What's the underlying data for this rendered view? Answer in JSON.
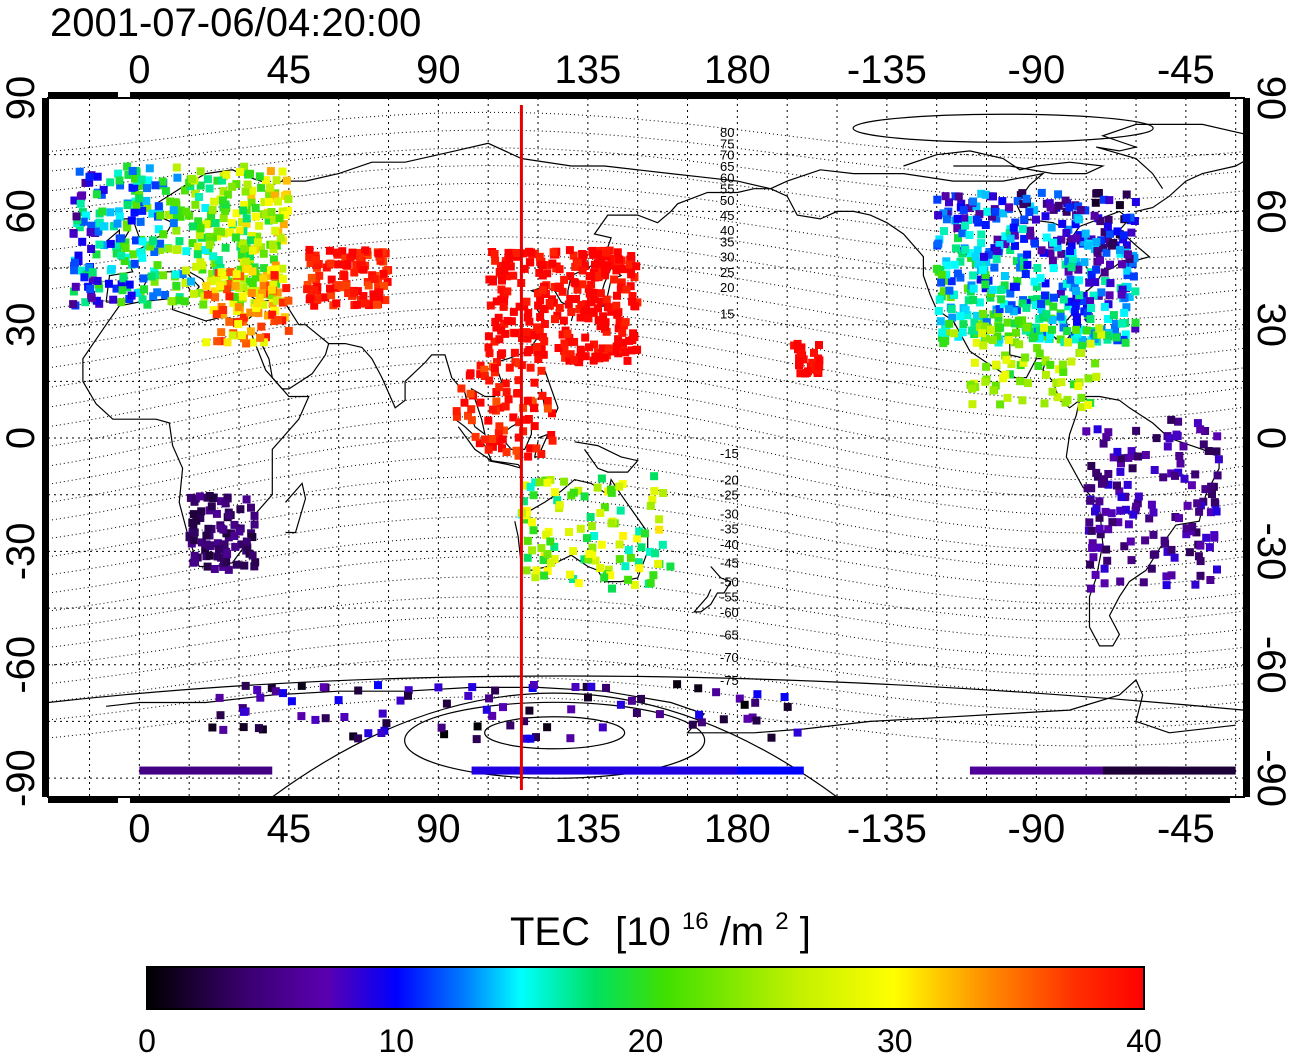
{
  "timestamp": "2001-07-06/04:20:00",
  "longitude_ticks": [
    "0",
    "45",
    "90",
    "135",
    "180",
    "-135",
    "-90",
    "-45"
  ],
  "latitude_ticks": [
    "90",
    "60",
    "30",
    "0",
    "-30",
    "-60",
    "-90"
  ],
  "contour_labels": [
    "80",
    "75",
    "70",
    "65",
    "60",
    "55",
    "50",
    "45",
    "40",
    "35",
    "30",
    "25",
    "20",
    "15",
    "-15",
    "-20",
    "-25",
    "-30",
    "-35",
    "-40",
    "-45",
    "-50",
    "-55",
    "-60",
    "-65",
    "-70",
    "-75"
  ],
  "marker_longitude_deg": 115,
  "colorbar": {
    "title": "TEC",
    "unit_base": "[10",
    "unit_exp": "16",
    "unit_mid": "/m",
    "unit_exp2": "2",
    "unit_end": "]",
    "tick_labels": [
      "0",
      "10",
      "20",
      "30",
      "40"
    ],
    "range": [
      0,
      40
    ]
  },
  "colors": {
    "marker_line": "#e60000",
    "gradient_stops": [
      "#000000",
      "#3a0070",
      "#5a00b0",
      "#0000ff",
      "#0080ff",
      "#00ffff",
      "#00e060",
      "#40e000",
      "#c0f000",
      "#ffff00",
      "#ff9000",
      "#ff3000",
      "#ff0000"
    ]
  },
  "tec_regions": [
    {
      "name": "europe",
      "tec": 19
    },
    {
      "name": "middle-east",
      "tec": 33
    },
    {
      "name": "central-asia",
      "tec": 39
    },
    {
      "name": "japan-china",
      "tec": 40
    },
    {
      "name": "southeast-asia",
      "tec": 39
    },
    {
      "name": "australia",
      "tec": 23
    },
    {
      "name": "north-america",
      "tec": 16
    },
    {
      "name": "mexico",
      "tec": 24
    },
    {
      "name": "south-america",
      "tec": 6
    },
    {
      "name": "southern-africa",
      "tec": 4
    },
    {
      "name": "antarctica",
      "tec": 5
    },
    {
      "name": "hawaii",
      "tec": 40
    }
  ]
}
